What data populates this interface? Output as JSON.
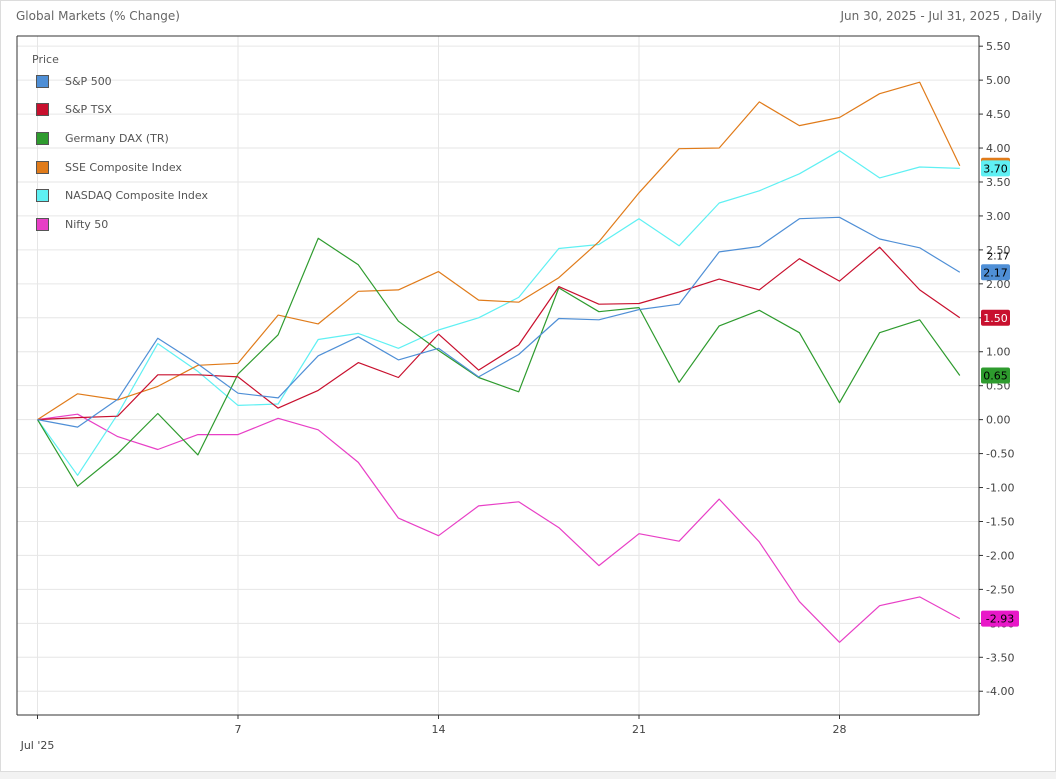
{
  "header": {
    "title": "Global Markets (% Change)",
    "range": "Jun 30, 2025 - Jul 31, 2025 , Daily"
  },
  "legend": {
    "title": "Price"
  },
  "chart_data": {
    "type": "line",
    "title": "Global Markets (% Change)",
    "x": [
      "Jun 30",
      "Jul 1",
      "Jul 2",
      "Jul 3",
      "Jul 4",
      "Jul 7",
      "Jul 8",
      "Jul 9",
      "Jul 10",
      "Jul 11",
      "Jul 14",
      "Jul 15",
      "Jul 16",
      "Jul 17",
      "Jul 18",
      "Jul 21",
      "Jul 22",
      "Jul 23",
      "Jul 24",
      "Jul 25",
      "Jul 28",
      "Jul 29",
      "Jul 30",
      "Jul 31"
    ],
    "x_ticks": [
      {
        "index": 0,
        "label": ""
      },
      {
        "index": 5,
        "label": "7"
      },
      {
        "index": 10,
        "label": "14"
      },
      {
        "index": 15,
        "label": "21"
      },
      {
        "index": 20,
        "label": "28"
      }
    ],
    "x_sublabel": "Jul '25",
    "ylim": [
      -4.35,
      5.65
    ],
    "y_ticks": [
      -4.0,
      -3.5,
      -3.0,
      -2.5,
      -2.0,
      -1.5,
      -1.0,
      -0.5,
      0.0,
      0.5,
      1.0,
      1.5,
      2.0,
      2.5,
      3.0,
      3.5,
      4.0,
      4.5,
      5.0,
      5.5
    ],
    "y_tick_labels": [
      "-4.00",
      "-3.50",
      "-3.00",
      "-2.50",
      "-2.00",
      "-1.50",
      "-1.00",
      "-0.50",
      "0.00",
      "0.50",
      "1.00",
      "1.50",
      "2.00",
      "2.50",
      "3.00",
      "3.50",
      "4.00",
      "4.50",
      "5.00",
      "5.50"
    ],
    "grid": true,
    "legend_position": "top-left",
    "series": [
      {
        "name": "S&P 500",
        "color": "#4f8fd6",
        "values": [
          0.0,
          -0.11,
          0.3,
          1.2,
          0.82,
          0.39,
          0.32,
          0.94,
          1.22,
          0.88,
          1.05,
          0.63,
          0.96,
          1.49,
          1.47,
          1.62,
          1.7,
          2.47,
          2.55,
          2.96,
          2.98,
          2.66,
          2.53,
          2.17
        ]
      },
      {
        "name": "S&P TSX",
        "color": "#c8102e",
        "values": [
          0.0,
          0.03,
          0.05,
          0.66,
          0.66,
          0.63,
          0.17,
          0.43,
          0.84,
          0.62,
          1.26,
          0.73,
          1.1,
          1.96,
          1.7,
          1.71,
          1.88,
          2.07,
          1.91,
          2.37,
          2.04,
          2.54,
          1.91,
          1.5
        ]
      },
      {
        "name": "Germany DAX (TR)",
        "color": "#2e9b2e",
        "values": [
          0.0,
          -0.98,
          -0.5,
          0.09,
          -0.52,
          0.67,
          1.25,
          2.67,
          2.28,
          1.45,
          1.02,
          0.62,
          0.41,
          1.94,
          1.59,
          1.65,
          0.55,
          1.38,
          1.61,
          1.28,
          0.25,
          1.28,
          1.47,
          0.65
        ]
      },
      {
        "name": "SSE Composite Index",
        "color": "#e07b1a",
        "values": [
          0.0,
          0.38,
          0.29,
          0.49,
          0.8,
          0.83,
          1.54,
          1.41,
          1.89,
          1.91,
          2.18,
          1.76,
          1.73,
          2.09,
          2.62,
          3.34,
          3.99,
          4.0,
          4.68,
          4.33,
          4.45,
          4.8,
          4.97,
          3.74
        ]
      },
      {
        "name": "NASDAQ Composite Index",
        "color": "#5ff0f3",
        "values": [
          0.0,
          -0.82,
          0.08,
          1.12,
          0.71,
          0.21,
          0.23,
          1.18,
          1.27,
          1.05,
          1.32,
          1.5,
          1.8,
          2.52,
          2.58,
          2.96,
          2.56,
          3.19,
          3.37,
          3.62,
          3.96,
          3.56,
          3.72,
          3.7
        ]
      },
      {
        "name": "Nifty 50",
        "color": "#e83fc6",
        "values": [
          0.0,
          0.08,
          -0.25,
          -0.44,
          -0.22,
          -0.22,
          0.02,
          -0.15,
          -0.63,
          -1.45,
          -1.71,
          -1.27,
          -1.21,
          -1.59,
          -2.15,
          -1.68,
          -1.79,
          -1.17,
          -1.8,
          -2.68,
          -3.28,
          -2.74,
          -2.61,
          -2.93
        ]
      }
    ],
    "last_value_tags": [
      {
        "series": "SSE Composite Index",
        "label": "3.74",
        "value": 3.74,
        "bg": "#e07b1a",
        "fg": "#000000"
      },
      {
        "series": "NASDAQ Composite Index",
        "label": "3.70",
        "value": 3.7,
        "bg": "#5ff0f3",
        "fg": "#000000"
      },
      {
        "series": "S&P 500",
        "label": "2.17",
        "value": 2.17,
        "bg": "#4f8fd6",
        "fg": "#000000"
      },
      {
        "series": "S&P TSX",
        "label": "1.50",
        "value": 1.5,
        "bg": "#c8102e",
        "fg": "#ffffff"
      },
      {
        "series": "Germany DAX (TR)",
        "label": "0.65",
        "value": 0.65,
        "bg": "#2e9b2e",
        "fg": "#000000"
      },
      {
        "series": "Nifty 50",
        "label": "-2.93",
        "value": -2.93,
        "bg": "#e818c8",
        "fg": "#000000"
      }
    ],
    "crosshair_label": "2.17"
  }
}
